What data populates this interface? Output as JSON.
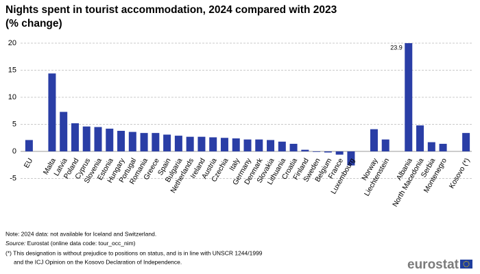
{
  "chart_data": {
    "type": "bar",
    "title": "Nights spent in tourist accommodation, 2024 compared with 2023",
    "subtitle": "(% change)",
    "categories": [
      "EU",
      null,
      "Malta",
      "Latvia",
      "Poland",
      "Cyprus",
      "Slovenia",
      "Estonia",
      "Hungary",
      "Portugal",
      "Romania",
      "Greece",
      "Spain",
      "Bulgaria",
      "Netherlands",
      "Ireland",
      "Austria",
      "Czechia",
      "Italy",
      "Germany",
      "Denmark",
      "Slovakia",
      "Lithuania",
      "Croatia",
      "Finland",
      "Sweden",
      "Belgium",
      "France",
      "Luxembourg",
      null,
      "Norway",
      "Liechtenstein",
      null,
      "Albania",
      "North Macedonia",
      "Serbia",
      "Montenegro",
      null,
      "Kosovo (*)"
    ],
    "values": [
      2.1,
      null,
      14.4,
      7.3,
      5.2,
      4.6,
      4.5,
      4.2,
      3.8,
      3.6,
      3.4,
      3.4,
      3.1,
      2.9,
      2.7,
      2.7,
      2.6,
      2.5,
      2.4,
      2.2,
      2.2,
      2.1,
      1.8,
      1.4,
      0.3,
      -0.1,
      -0.2,
      -0.6,
      -2.6,
      null,
      4.1,
      2.2,
      null,
      23.9,
      4.8,
      1.7,
      1.4,
      null,
      3.4
    ],
    "value_labels": [
      null,
      null,
      null,
      null,
      null,
      null,
      null,
      null,
      null,
      null,
      null,
      null,
      null,
      null,
      null,
      null,
      null,
      null,
      null,
      null,
      null,
      null,
      null,
      null,
      null,
      null,
      null,
      null,
      null,
      null,
      null,
      null,
      null,
      "23.9",
      null,
      null,
      null,
      null,
      null
    ],
    "color": "#2a3ea6",
    "ylim": [
      -5,
      20
    ],
    "yticks": [
      -5,
      0,
      5,
      10,
      15,
      20
    ],
    "grid": true,
    "notes": [
      "Note: 2024 data: not available for Iceland and Switzerland."
    ],
    "source": {
      "label": "Source:",
      "text": "Eurostat (online data code: tour_occ_nim)"
    },
    "footnote": [
      "(*) This designation is without prejudice to positions on status, and is in line with UNSCR 1244/1999",
      "and the ICJ Opinion on the Kosovo Declaration of Independence."
    ],
    "logo": "eurostat"
  }
}
